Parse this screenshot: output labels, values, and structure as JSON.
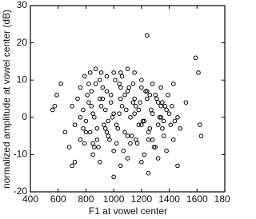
{
  "chart_data": {
    "type": "scatter",
    "x_label": "F1 at vowel center",
    "y_label": "normalized amplitude at vowel center (dB)",
    "xlim": [
      400,
      1800
    ],
    "xticks": [
      400,
      600,
      800,
      1000,
      1200,
      1400,
      1600,
      1800
    ],
    "ylim": [
      -20,
      30
    ],
    "yticks": [
      -20,
      -10,
      0,
      10,
      20,
      30
    ],
    "grid": false,
    "color": "#000000",
    "x": [
      1240,
      1590,
      1610,
      1620,
      1630,
      1460,
      1250,
      1000,
      1430,
      1520,
      560,
      575,
      590,
      620,
      650,
      680,
      700,
      720,
      760,
      790,
      830,
      870,
      910,
      950,
      1000,
      1050,
      1100,
      1150,
      1200,
      1280,
      1340,
      1390,
      1420,
      1460,
      1480,
      1430,
      1380,
      1320,
      1200,
      1100,
      1050,
      900,
      850,
      760,
      720,
      700,
      740,
      780,
      800,
      820,
      840,
      860,
      880,
      900,
      920,
      940,
      960,
      980,
      1000,
      1020,
      1040,
      1060,
      1080,
      1100,
      1120,
      1140,
      1160,
      1180,
      1200,
      1220,
      1240,
      1260,
      1280,
      1300,
      1320,
      1340,
      1360,
      1380,
      790,
      810,
      830,
      850,
      870,
      890,
      910,
      930,
      950,
      970,
      990,
      1010,
      1030,
      1050,
      1070,
      1090,
      1110,
      1130,
      1150,
      1170,
      1190,
      1210,
      1230,
      1250,
      1270,
      1290,
      1310,
      1330,
      1350,
      1370,
      800,
      840,
      880,
      920,
      960,
      1000,
      1040,
      1080,
      1120,
      1160,
      1200,
      1240,
      1280,
      1320,
      1360,
      1400,
      820,
      860,
      900,
      940,
      980,
      1020,
      1060,
      1100,
      1140,
      1180,
      1220,
      1260,
      1300,
      1340,
      760,
      780,
      850,
      950,
      1050,
      1150,
      1250,
      1350,
      1410,
      1440
    ],
    "y": [
      22,
      16,
      12,
      -2,
      -5,
      -13,
      -15,
      -16,
      9,
      4,
      2,
      3,
      6,
      9,
      -4,
      -8,
      -13,
      -12,
      8,
      11,
      12,
      13,
      12,
      11,
      12,
      12,
      13,
      12,
      10,
      9,
      8,
      6,
      3,
      0,
      -3,
      -6,
      -9,
      -11,
      -12,
      -11,
      -13,
      -12,
      -10,
      -6,
      -2,
      3,
      5,
      2,
      -1,
      4,
      7,
      0,
      -3,
      5,
      8,
      2,
      -5,
      6,
      1,
      -2,
      9,
      3,
      -4,
      7,
      0,
      4,
      -6,
      2,
      8,
      -1,
      5,
      -3,
      1,
      6,
      -2,
      3,
      -5,
      2,
      -7,
      6,
      -4,
      1,
      9,
      -8,
      3,
      -2,
      7,
      -6,
      0,
      10,
      -3,
      5,
      -9,
      2,
      8,
      -5,
      1,
      -7,
      4,
      -1,
      7,
      -4,
      2,
      -8,
      5,
      0,
      -3,
      3,
      -4,
      3,
      -6,
      5,
      -1,
      -9,
      1,
      6,
      -7,
      3,
      -2,
      7,
      -6,
      4,
      -1,
      1,
      9,
      -8,
      10,
      -3,
      4,
      -7,
      11,
      -5,
      9,
      -2,
      -10,
      6,
      -8,
      0,
      0,
      -3,
      -7,
      -4,
      8,
      5,
      -6,
      4,
      -2,
      -1
    ]
  }
}
